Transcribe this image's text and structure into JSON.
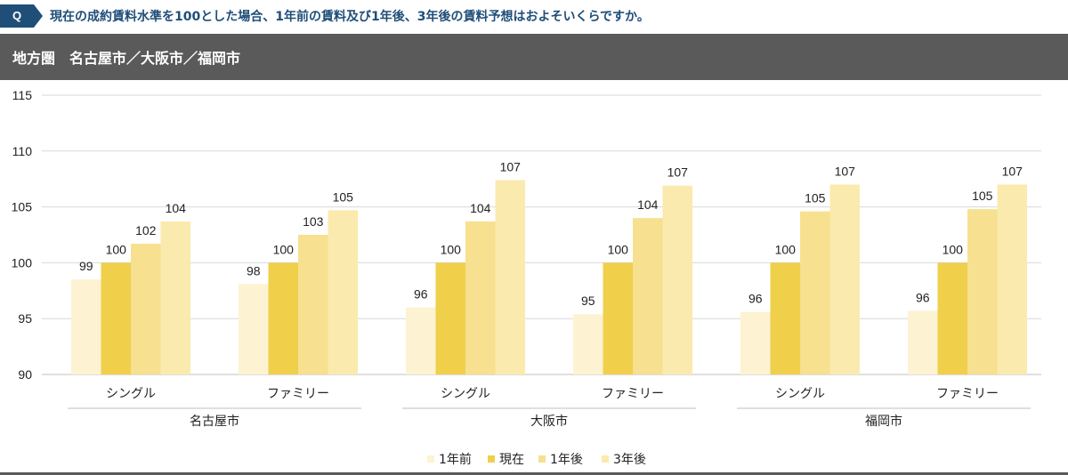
{
  "header": {
    "q_label": "Q",
    "question": "現在の成約賃料水準を100とした場合、1年前の賃料及び1年後、3年後の賃料予想はおよそいくらですか。",
    "region": "地方圏　名古屋市／大阪市／福岡市"
  },
  "colors": {
    "header_blue": "#1f4e79",
    "region_bar": "#5a5a5a",
    "gridline": "#d9d9d9",
    "series": [
      "#fdf3d2",
      "#f0cf4b",
      "#f7e08f",
      "#fbeaad"
    ]
  },
  "chart_data": {
    "type": "bar",
    "title": "",
    "xlabel": "",
    "ylabel": "",
    "ylim": [
      90,
      115
    ],
    "yticks": [
      90,
      95,
      100,
      105,
      110,
      115
    ],
    "grid": true,
    "legend_position": "bottom-center",
    "groups": [
      {
        "city": "名古屋市",
        "categories": [
          {
            "label": "シングル",
            "values": [
              98.5,
              100,
              101.7,
              103.7
            ],
            "labels": [
              "99",
              "100",
              "102",
              "104"
            ]
          },
          {
            "label": "ファミリー",
            "values": [
              98.1,
              100,
              102.5,
              104.7
            ],
            "labels": [
              "98",
              "100",
              "103",
              "105"
            ]
          }
        ]
      },
      {
        "city": "大阪市",
        "categories": [
          {
            "label": "シングル",
            "values": [
              96.0,
              100,
              103.7,
              107.4
            ],
            "labels": [
              "96",
              "100",
              "104",
              "107"
            ]
          },
          {
            "label": "ファミリー",
            "values": [
              95.4,
              100,
              104.0,
              106.9
            ],
            "labels": [
              "95",
              "100",
              "104",
              "107"
            ]
          }
        ]
      },
      {
        "city": "福岡市",
        "categories": [
          {
            "label": "シングル",
            "values": [
              95.6,
              100,
              104.6,
              107.0
            ],
            "labels": [
              "96",
              "100",
              "105",
              "107"
            ]
          },
          {
            "label": "ファミリー",
            "values": [
              95.7,
              100,
              104.8,
              107.0
            ],
            "labels": [
              "96",
              "100",
              "105",
              "107"
            ]
          }
        ]
      }
    ],
    "series": [
      {
        "name": "1年前"
      },
      {
        "name": "現在"
      },
      {
        "name": "1年後"
      },
      {
        "name": "3年後"
      }
    ]
  }
}
